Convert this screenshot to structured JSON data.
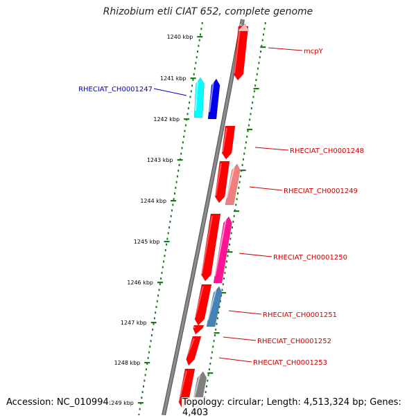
{
  "title": "Rhizobium etli CIAT 652, complete genome",
  "footer": {
    "accession": "Accession: NC_010994",
    "summary": "Topology: circular; Length: 4,513,324 bp; Genes: 4,403"
  },
  "ruler": {
    "tick_labels": [
      "1240 kbp",
      "1241 kbp",
      "1242 kbp",
      "1243 kbp",
      "1244 kbp",
      "1245 kbp",
      "1246 kbp",
      "1247 kbp",
      "1248 kbp",
      "1249 kbp"
    ],
    "tick_color": "#1a7a1a"
  },
  "backbone_color": "#8c8c8c",
  "genes": [
    {
      "label": "mcpY",
      "strand": "forward",
      "color": "#ff0000"
    },
    {
      "label": "",
      "strand": "forward",
      "color": "#ffb6b6"
    },
    {
      "label": "RHECIAT_CH0001247",
      "strand": "reverse",
      "color": "#00ffff"
    },
    {
      "label": "",
      "strand": "reverse",
      "color": "#0000ee"
    },
    {
      "label": "RHECIAT_CH0001248",
      "strand": "forward",
      "color": "#ff0000"
    },
    {
      "label": "",
      "strand": "forward",
      "color": "#ff0000"
    },
    {
      "label": "RHECIAT_CH0001249",
      "strand": "forward",
      "color": "#f08080"
    },
    {
      "label": "",
      "strand": "forward",
      "color": "#ff0000"
    },
    {
      "label": "RHECIAT_CH0001250",
      "strand": "forward",
      "color": "#ff1493"
    },
    {
      "label": "",
      "strand": "forward",
      "color": "#ff0000"
    },
    {
      "label": "RHECIAT_CH0001251",
      "strand": "forward",
      "color": "#4682b4"
    },
    {
      "label": "RHECIAT_CH0001252",
      "strand": "forward",
      "color": "#ff0000"
    },
    {
      "label": "RHECIAT_CH0001253",
      "strand": "forward",
      "color": "#ff0000"
    },
    {
      "label": "",
      "strand": "forward",
      "color": "#ff0000"
    },
    {
      "label": "",
      "strand": "forward",
      "color": "#808080"
    }
  ],
  "label_colors": {
    "forward": "#cc0000",
    "reverse": "#0000cc"
  }
}
